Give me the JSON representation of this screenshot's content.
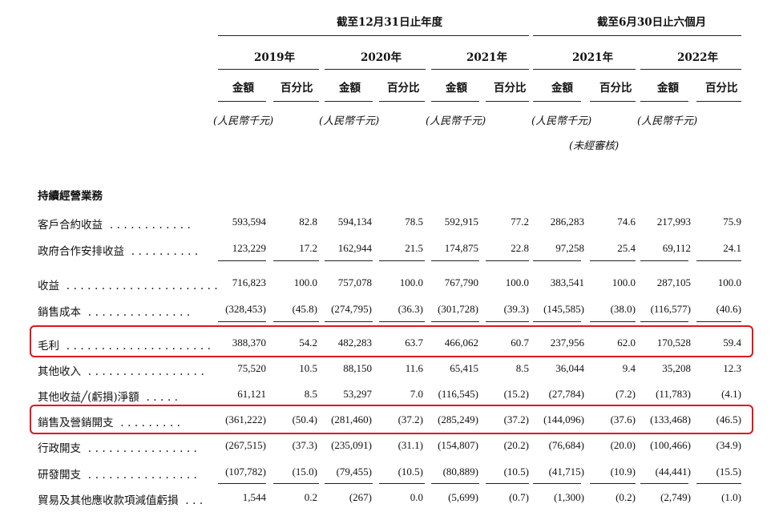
{
  "header": {
    "group1": "截至12月31日止年度",
    "group2": "截至6月30日止六個月",
    "years": [
      "2019年",
      "2020年",
      "2021年",
      "2021年",
      "2022年"
    ],
    "col_amount": "金額",
    "col_pct": "百分比",
    "unit": "(人民幣千元)",
    "unaudited": "(未經審核)"
  },
  "section_title": "持續經營業務",
  "rows": [
    {
      "label": "客戶合約收益",
      "values": [
        "593,594",
        "82.8",
        "594,134",
        "78.5",
        "592,915",
        "77.2",
        "286,283",
        "74.6",
        "217,993",
        "75.9"
      ]
    },
    {
      "label": "政府合作安排收益",
      "values": [
        "123,229",
        "17.2",
        "162,944",
        "21.5",
        "174,875",
        "22.8",
        "97,258",
        "25.4",
        "69,112",
        "24.1"
      ]
    },
    {
      "label": "收益",
      "values": [
        "716,823",
        "100.0",
        "757,078",
        "100.0",
        "767,790",
        "100.0",
        "383,541",
        "100.0",
        "287,105",
        "100.0"
      ]
    },
    {
      "label": "銷售成本",
      "values": [
        "(328,453)",
        "(45.8)",
        "(274,795)",
        "(36.3)",
        "(301,728)",
        "(39.3)",
        "(145,585)",
        "(38.0)",
        "(116,577)",
        "(40.6)"
      ]
    },
    {
      "label": "毛利",
      "values": [
        "388,370",
        "54.2",
        "482,283",
        "63.7",
        "466,062",
        "60.7",
        "237,956",
        "62.0",
        "170,528",
        "59.4"
      ]
    },
    {
      "label": "其他收入",
      "values": [
        "75,520",
        "10.5",
        "88,150",
        "11.6",
        "65,415",
        "8.5",
        "36,044",
        "9.4",
        "35,208",
        "12.3"
      ]
    },
    {
      "label": "其他收益╱(虧損)淨額",
      "values": [
        "61,121",
        "8.5",
        "53,297",
        "7.0",
        "(116,545)",
        "(15.2)",
        "(27,784)",
        "(7.2)",
        "(11,783)",
        "(4.1)"
      ]
    },
    {
      "label": "銷售及營銷開支",
      "values": [
        "(361,222)",
        "(50.4)",
        "(281,460)",
        "(37.2)",
        "(285,249)",
        "(37.2)",
        "(144,096)",
        "(37.6)",
        "(133,468)",
        "(46.5)"
      ]
    },
    {
      "label": "行政開支",
      "values": [
        "(267,515)",
        "(37.3)",
        "(235,091)",
        "(31.1)",
        "(154,807)",
        "(20.2)",
        "(76,684)",
        "(20.0)",
        "(100,466)",
        "(34.9)"
      ]
    },
    {
      "label": "研發開支",
      "values": [
        "(107,782)",
        "(15.0)",
        "(79,455)",
        "(10.5)",
        "(80,889)",
        "(10.5)",
        "(41,715)",
        "(10.9)",
        "(44,441)",
        "(15.5)"
      ]
    },
    {
      "label": "貿易及其他應收款項減值虧損",
      "values": [
        "1,544",
        "0.2",
        "(267)",
        "0.0",
        "(5,699)",
        "(0.7)",
        "(1,300)",
        "(0.2)",
        "(2,749)",
        "(1.0)"
      ]
    }
  ],
  "highlight_color": "#e0141c"
}
